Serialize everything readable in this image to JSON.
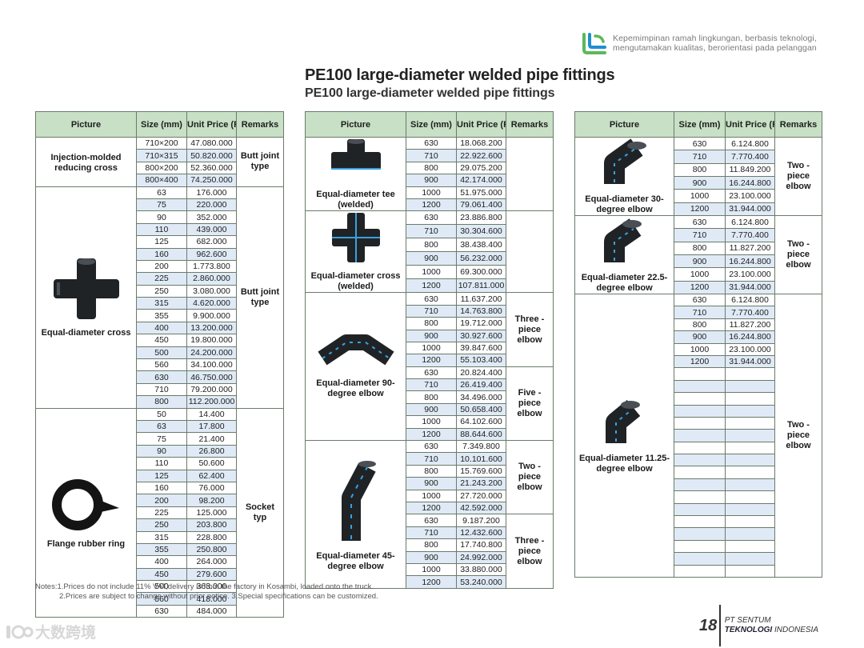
{
  "brand": {
    "tagline1": "Kepemimpinan ramah lingkungan, berbasis teknologi,",
    "tagline2": "mengutamakan kualitas, berorientasi pada pelanggan",
    "colors": {
      "green": "#5cb85c",
      "blue": "#1e8fd0"
    }
  },
  "title": {
    "line1": "PE100 large-diameter welded pipe fittings",
    "line2": "PE100 large-diameter welded pipe fittings"
  },
  "headers": {
    "picture": "Picture",
    "size": "Size (mm)",
    "price": "Unit Price (Rp/pc)",
    "remarks": "Remarks"
  },
  "tables": [
    {
      "groups": [
        {
          "picture": "Injection-molded reducing cross",
          "icon": "reducing-cross",
          "remark": "Butt joint type",
          "remark_span": 4,
          "rows": [
            [
              "710×200",
              "47.080.000"
            ],
            [
              "710×315",
              "50.820.000"
            ],
            [
              "800×200",
              "52.360.000"
            ],
            [
              "800×400",
              "74.250.000"
            ]
          ]
        },
        {
          "picture": "Equal-diameter cross",
          "icon": "cross",
          "remark": "Butt joint type",
          "remark_span": 18,
          "rows": [
            [
              "63",
              "176.000"
            ],
            [
              "75",
              "220.000"
            ],
            [
              "90",
              "352.000"
            ],
            [
              "110",
              "439.000"
            ],
            [
              "125",
              "682.000"
            ],
            [
              "160",
              "962.600"
            ],
            [
              "200",
              "1.773.800"
            ],
            [
              "225",
              "2.860.000"
            ],
            [
              "250",
              "3.080.000"
            ],
            [
              "315",
              "4.620.000"
            ],
            [
              "355",
              "9.900.000"
            ],
            [
              "400",
              "13.200.000"
            ],
            [
              "450",
              "19.800.000"
            ],
            [
              "500",
              "24.200.000"
            ],
            [
              "560",
              "34.100.000"
            ],
            [
              "630",
              "46.750.000"
            ],
            [
              "710",
              "79.200.000"
            ],
            [
              "800",
              "112.200.000"
            ]
          ]
        },
        {
          "picture": "Flange rubber ring",
          "icon": "rubber-ring",
          "remark": "Socket typ",
          "remark_span": 17,
          "rows": [
            [
              "50",
              "14.400"
            ],
            [
              "63",
              "17.800"
            ],
            [
              "75",
              "21.400"
            ],
            [
              "90",
              "26.800"
            ],
            [
              "110",
              "50.600"
            ],
            [
              "125",
              "62.400"
            ],
            [
              "160",
              "76.000"
            ],
            [
              "200",
              "98.200"
            ],
            [
              "225",
              "125.000"
            ],
            [
              "250",
              "203.800"
            ],
            [
              "315",
              "228.800"
            ],
            [
              "355",
              "250.800"
            ],
            [
              "400",
              "264.000"
            ],
            [
              "450",
              "279.600"
            ],
            [
              "500",
              "363.000"
            ],
            [
              "560",
              "418.000"
            ],
            [
              "630",
              "484.000"
            ]
          ]
        }
      ]
    },
    {
      "groups": [
        {
          "picture": "Equal-diameter tee (welded)",
          "icon": "tee",
          "remark": "",
          "remark_span": 6,
          "rows": [
            [
              "630",
              "18.068.200"
            ],
            [
              "710",
              "22.922.600"
            ],
            [
              "800",
              "29.075.200"
            ],
            [
              "900",
              "42.174.000"
            ],
            [
              "1000",
              "51.975.000"
            ],
            [
              "1200",
              "79.061.400"
            ]
          ]
        },
        {
          "picture": "Equal-diameter cross (welded)",
          "icon": "welded-cross",
          "remark": "",
          "remark_span": 6,
          "rows": [
            [
              "630",
              "23.886.800"
            ],
            [
              "710",
              "30.304.600"
            ],
            [
              "800",
              "38.438.400"
            ],
            [
              "900",
              "56.232.000"
            ],
            [
              "1000",
              "69.300.000"
            ],
            [
              "1200",
              "107.811.000"
            ]
          ]
        },
        {
          "picture": "Equal-diameter 90-degree elbow",
          "icon": "elbow-90",
          "remark": "Three - piece elbow",
          "remark_span": 6,
          "rows": [
            [
              "630",
              "11.637.200"
            ],
            [
              "710",
              "14.763.800"
            ],
            [
              "800",
              "19.712.000"
            ],
            [
              "900",
              "30.927.600"
            ],
            [
              "1000",
              "39.847.600"
            ],
            [
              "1200",
              "55.103.400"
            ]
          ]
        },
        {
          "picture": "",
          "icon": "",
          "remark": "Five - piece elbow",
          "remark_span": 6,
          "rows": [
            [
              "630",
              "20.824.400"
            ],
            [
              "710",
              "26.419.400"
            ],
            [
              "800",
              "34.496.000"
            ],
            [
              "900",
              "50.658.400"
            ],
            [
              "1000",
              "64.102.600"
            ],
            [
              "1200",
              "88.644.600"
            ]
          ]
        },
        {
          "picture": "Equal-diameter 45-degree elbow",
          "icon": "elbow-45",
          "remark": "Two - piece elbow",
          "remark_span": 6,
          "rows": [
            [
              "630",
              "7.349.800"
            ],
            [
              "710",
              "10.101.600"
            ],
            [
              "800",
              "15.769.600"
            ],
            [
              "900",
              "21.243.200"
            ],
            [
              "1000",
              "27.720.000"
            ],
            [
              "1200",
              "42.592.000"
            ]
          ]
        },
        {
          "picture": "",
          "icon": "",
          "remark": "Three - piece elbow",
          "remark_span": 6,
          "rows": [
            [
              "630",
              "9.187.200"
            ],
            [
              "710",
              "12.432.600"
            ],
            [
              "800",
              "17.740.800"
            ],
            [
              "900",
              "24.992.000"
            ],
            [
              "1000",
              "33.880.000"
            ],
            [
              "1200",
              "53.240.000"
            ]
          ]
        }
      ]
    },
    {
      "groups": [
        {
          "picture": "Equal-diameter 30-degree elbow",
          "icon": "elbow-30",
          "remark": "Two - piece elbow",
          "remark_span": 6,
          "rows": [
            [
              "630",
              "6.124.800"
            ],
            [
              "710",
              "7.770.400"
            ],
            [
              "800",
              "11.849.200"
            ],
            [
              "900",
              "16.244.800"
            ],
            [
              "1000",
              "23.100.000"
            ],
            [
              "1200",
              "31.944.000"
            ]
          ]
        },
        {
          "picture": "Equal-diameter 22.5-degree elbow",
          "icon": "elbow-22",
          "remark": "Two - piece elbow",
          "remark_span": 6,
          "rows": [
            [
              "630",
              "6.124.800"
            ],
            [
              "710",
              "7.770.400"
            ],
            [
              "800",
              "11.827.200"
            ],
            [
              "900",
              "16.244.800"
            ],
            [
              "1000",
              "23.100.000"
            ],
            [
              "1200",
              "31.944.000"
            ]
          ]
        },
        {
          "picture": "Equal-diameter 11.25-degree elbow",
          "icon": "elbow-11",
          "remark": "Two - piece elbow",
          "remark_span": 23,
          "rows": [
            [
              "630",
              "6.124.800"
            ],
            [
              "710",
              "7.770.400"
            ],
            [
              "800",
              "11.827.200"
            ],
            [
              "900",
              "16.244.800"
            ],
            [
              "1000",
              "23.100.000"
            ],
            [
              "1200",
              "31.944.000"
            ],
            [
              "",
              ""
            ],
            [
              "",
              ""
            ],
            [
              "",
              ""
            ],
            [
              "",
              ""
            ],
            [
              "",
              ""
            ],
            [
              "",
              ""
            ],
            [
              "",
              ""
            ],
            [
              "",
              ""
            ],
            [
              "",
              ""
            ],
            [
              "",
              ""
            ],
            [
              "",
              ""
            ],
            [
              "",
              ""
            ],
            [
              "",
              ""
            ],
            [
              "",
              ""
            ],
            [
              "",
              ""
            ],
            [
              "",
              ""
            ],
            [
              "",
              ""
            ]
          ]
        }
      ]
    }
  ],
  "notes": {
    "line1": "Notes:1.Prices do not include 11% VAT,delivery is from the factory in Kosambi, loaded onto the truck.",
    "line2": "2.Prices are subject to change without prior notice.  3.Special specifications can be customized."
  },
  "footer": {
    "page": "18",
    "company1": "PT SENTUM",
    "company2_bold": "TEKNOLOGI",
    "company2_rest": " INDONESIA"
  },
  "watermark": {
    "text": "大数跨境"
  }
}
